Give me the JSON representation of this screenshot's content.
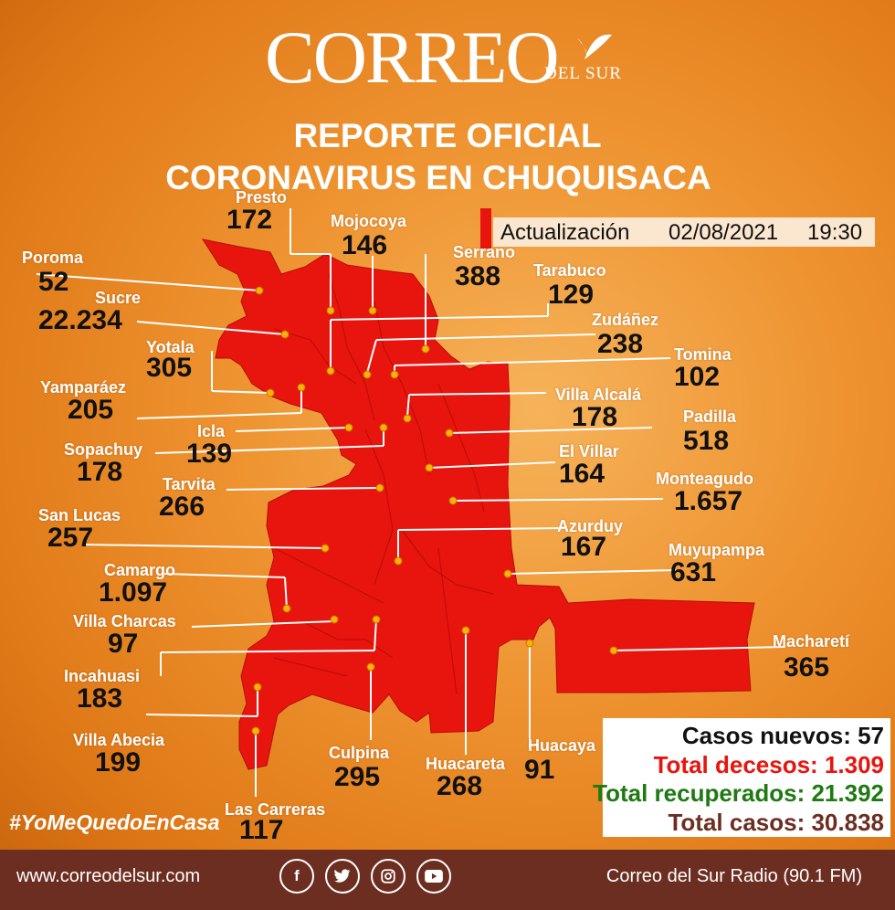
{
  "brand": {
    "logo_main": "CORREO",
    "logo_sub": "DEL SUR",
    "colors": {
      "background": "#ee9330",
      "map": "#e8150e",
      "footer": "#6d2e22"
    }
  },
  "title_line1": "REPORTE OFICIAL",
  "title_line2": "CORONAVIRUS EN CHUQUISACA",
  "update": {
    "label": "Actualización",
    "date": "02/08/2021",
    "time": "19:30"
  },
  "municipalities": [
    {
      "name": "Presto",
      "cases": "172"
    },
    {
      "name": "Mojocoya",
      "cases": "146"
    },
    {
      "name": "Serrano",
      "cases": "388"
    },
    {
      "name": "Poroma",
      "cases": "52"
    },
    {
      "name": "Tarabuco",
      "cases": "129"
    },
    {
      "name": "Sucre",
      "cases": "22.234"
    },
    {
      "name": "Zudáñez",
      "cases": "238"
    },
    {
      "name": "Yotala",
      "cases": "305"
    },
    {
      "name": "Tomina",
      "cases": "102"
    },
    {
      "name": "Yamparáez",
      "cases": "205"
    },
    {
      "name": "Villa Alcalá",
      "cases": "178"
    },
    {
      "name": "Padilla",
      "cases": "518"
    },
    {
      "name": "Icla",
      "cases": "139"
    },
    {
      "name": "Sopachuy",
      "cases": "178"
    },
    {
      "name": "El Villar",
      "cases": "164"
    },
    {
      "name": "Monteagudo",
      "cases": "1.657"
    },
    {
      "name": "Tarvita",
      "cases": "266"
    },
    {
      "name": "San Lucas",
      "cases": "257"
    },
    {
      "name": "Azurduy",
      "cases": "167"
    },
    {
      "name": "Muyupampa",
      "cases": "631"
    },
    {
      "name": "Camargo",
      "cases": "1.097"
    },
    {
      "name": "Villa Charcas",
      "cases": "97"
    },
    {
      "name": "Macharetí",
      "cases": "365"
    },
    {
      "name": "Incahuasi",
      "cases": "183"
    },
    {
      "name": "Villa Abecia",
      "cases": "199"
    },
    {
      "name": "Culpina",
      "cases": "295"
    },
    {
      "name": "Huacareta",
      "cases": "268"
    },
    {
      "name": "Huacaya",
      "cases": "91"
    },
    {
      "name": "Las Carreras",
      "cases": "117"
    }
  ],
  "totals": {
    "new": "Casos nuevos: 57",
    "deaths": "Total decesos: 1.309",
    "recovered": "Total recuperados: 21.392",
    "cases": "Total casos: 30.838",
    "colors": {
      "new": "#111111",
      "deaths": "#e8150e",
      "recovered": "#1e7a12",
      "cases": "#6d2e22"
    }
  },
  "hashtag": "#YoMeQuedoEnCasa",
  "footer": {
    "website": "www.correodelsur.com",
    "radio": "Correo del Sur Radio (90.1 FM)",
    "social_icons": [
      "facebook-icon",
      "twitter-icon",
      "instagram-icon",
      "youtube-icon"
    ]
  }
}
